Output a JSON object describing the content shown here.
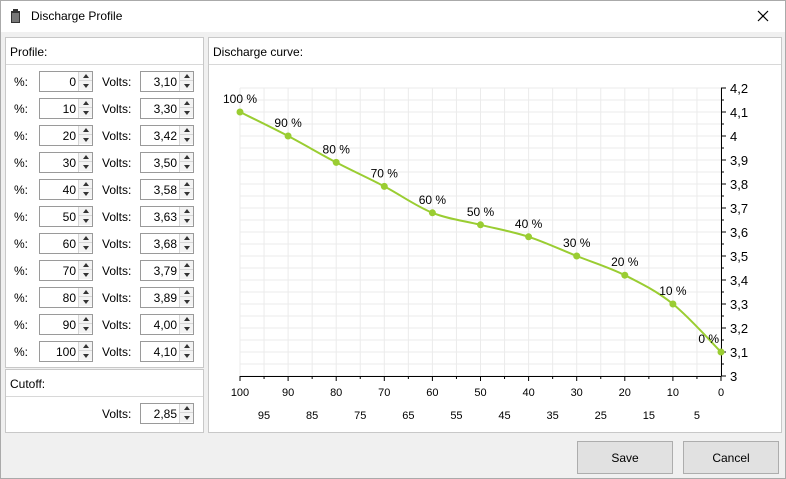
{
  "window": {
    "title": "Discharge Profile"
  },
  "profile": {
    "header": "Profile:",
    "percent_label": "%:",
    "volts_label": "Volts:",
    "rows": [
      {
        "percent": "0",
        "volts": "3,10"
      },
      {
        "percent": "10",
        "volts": "3,30"
      },
      {
        "percent": "20",
        "volts": "3,42"
      },
      {
        "percent": "30",
        "volts": "3,50"
      },
      {
        "percent": "40",
        "volts": "3,58"
      },
      {
        "percent": "50",
        "volts": "3,63"
      },
      {
        "percent": "60",
        "volts": "3,68"
      },
      {
        "percent": "70",
        "volts": "3,79"
      },
      {
        "percent": "80",
        "volts": "3,89"
      },
      {
        "percent": "90",
        "volts": "4,00"
      },
      {
        "percent": "100",
        "volts": "4,10"
      }
    ]
  },
  "cutoff": {
    "header": "Cutoff:",
    "volts_label": "Volts:",
    "volts": "2,85"
  },
  "chart_panel": {
    "header": "Discharge curve:"
  },
  "chart_data": {
    "type": "line",
    "title": "",
    "xlabel": "",
    "ylabel": "",
    "x_reversed": true,
    "xlim": [
      0,
      100
    ],
    "ylim": [
      3.0,
      4.2
    ],
    "x_major_ticks": [
      "100",
      "90",
      "80",
      "70",
      "60",
      "50",
      "40",
      "30",
      "20",
      "10",
      "0"
    ],
    "x_minor_ticks": [
      "95",
      "85",
      "75",
      "65",
      "55",
      "45",
      "35",
      "25",
      "15",
      "5"
    ],
    "y_ticks": [
      "3",
      "3,1",
      "3,2",
      "3,3",
      "3,4",
      "3,5",
      "3,6",
      "3,7",
      "3,8",
      "3,9",
      "4",
      "4,1",
      "4,2"
    ],
    "y_axis_position": "right",
    "grid": true,
    "line_color": "#9acd32",
    "points": [
      {
        "x": 100,
        "y": 4.1,
        "label": "100 %"
      },
      {
        "x": 90,
        "y": 4.0,
        "label": "90 %"
      },
      {
        "x": 80,
        "y": 3.89,
        "label": "80 %"
      },
      {
        "x": 70,
        "y": 3.79,
        "label": "70 %"
      },
      {
        "x": 60,
        "y": 3.68,
        "label": "60 %"
      },
      {
        "x": 50,
        "y": 3.63,
        "label": "50 %"
      },
      {
        "x": 40,
        "y": 3.58,
        "label": "40 %"
      },
      {
        "x": 30,
        "y": 3.5,
        "label": "30 %"
      },
      {
        "x": 20,
        "y": 3.42,
        "label": "20 %"
      },
      {
        "x": 10,
        "y": 3.3,
        "label": "10 %"
      },
      {
        "x": 0,
        "y": 3.1,
        "label": "0 %"
      }
    ]
  },
  "buttons": {
    "save": "Save",
    "cancel": "Cancel"
  }
}
